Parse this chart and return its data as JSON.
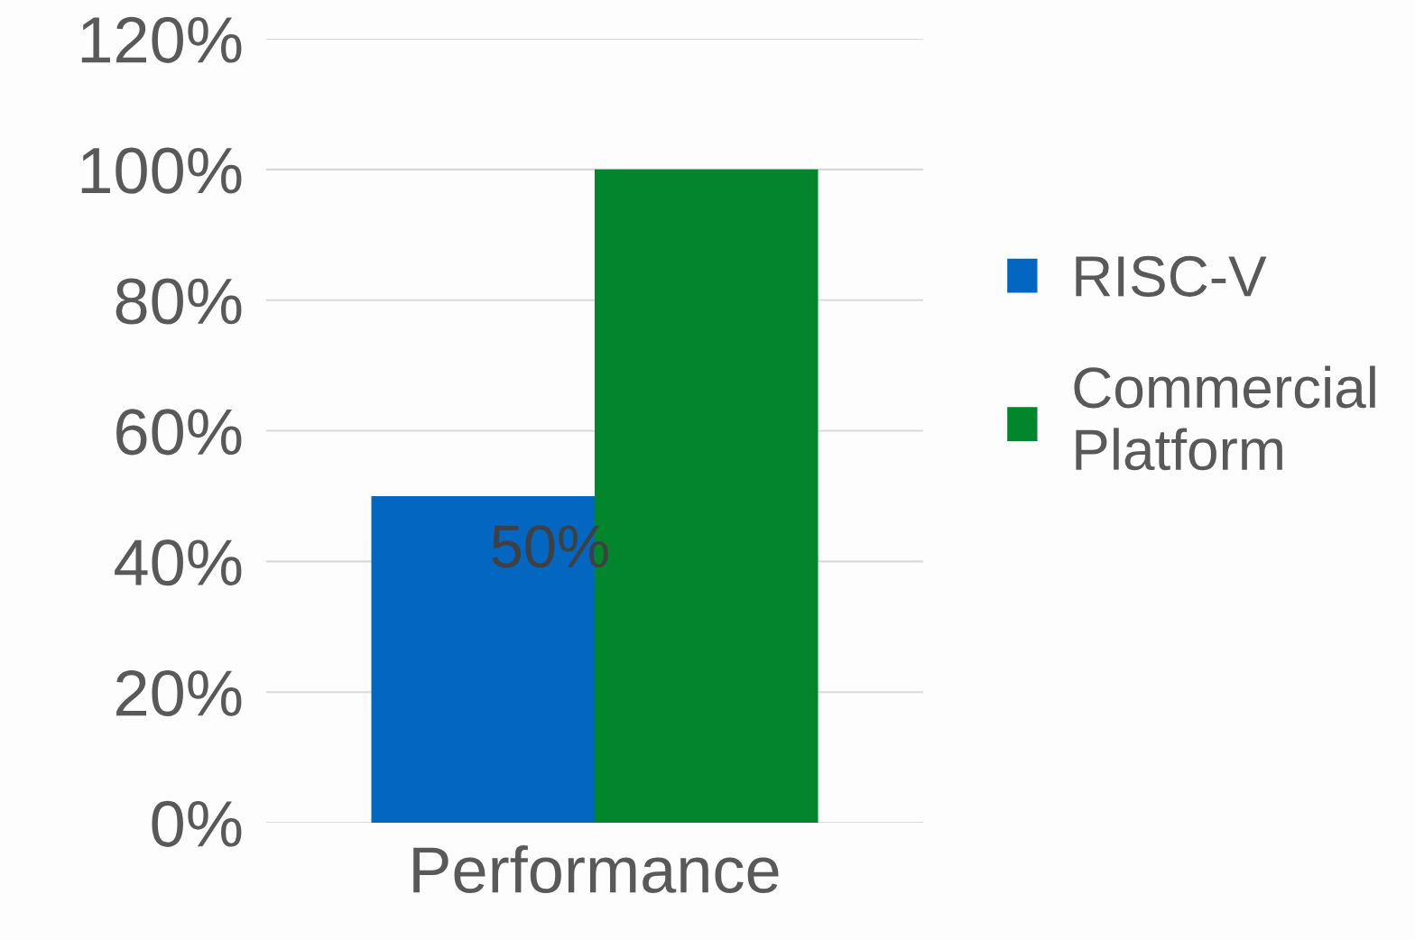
{
  "chart_data": {
    "type": "bar",
    "categories": [
      "Performance"
    ],
    "series": [
      {
        "name": "RISC-V",
        "color": "#0366c0",
        "values": [
          0.5
        ],
        "value_labels": [
          "50%"
        ]
      },
      {
        "name": "Commercial Platform",
        "color": "#02862b",
        "values": [
          1.0
        ]
      }
    ],
    "ylim": [
      0,
      1.2
    ],
    "yticks": [
      {
        "value": 0,
        "label": "0%"
      },
      {
        "value": 0.2,
        "label": "20%"
      },
      {
        "value": 0.4,
        "label": "40%"
      },
      {
        "value": 0.6,
        "label": "60%"
      },
      {
        "value": 0.8,
        "label": "80%"
      },
      {
        "value": 1.0,
        "label": "100%"
      },
      {
        "value": 1.2,
        "label": "120%"
      }
    ],
    "grid": "y",
    "legend": "right"
  }
}
